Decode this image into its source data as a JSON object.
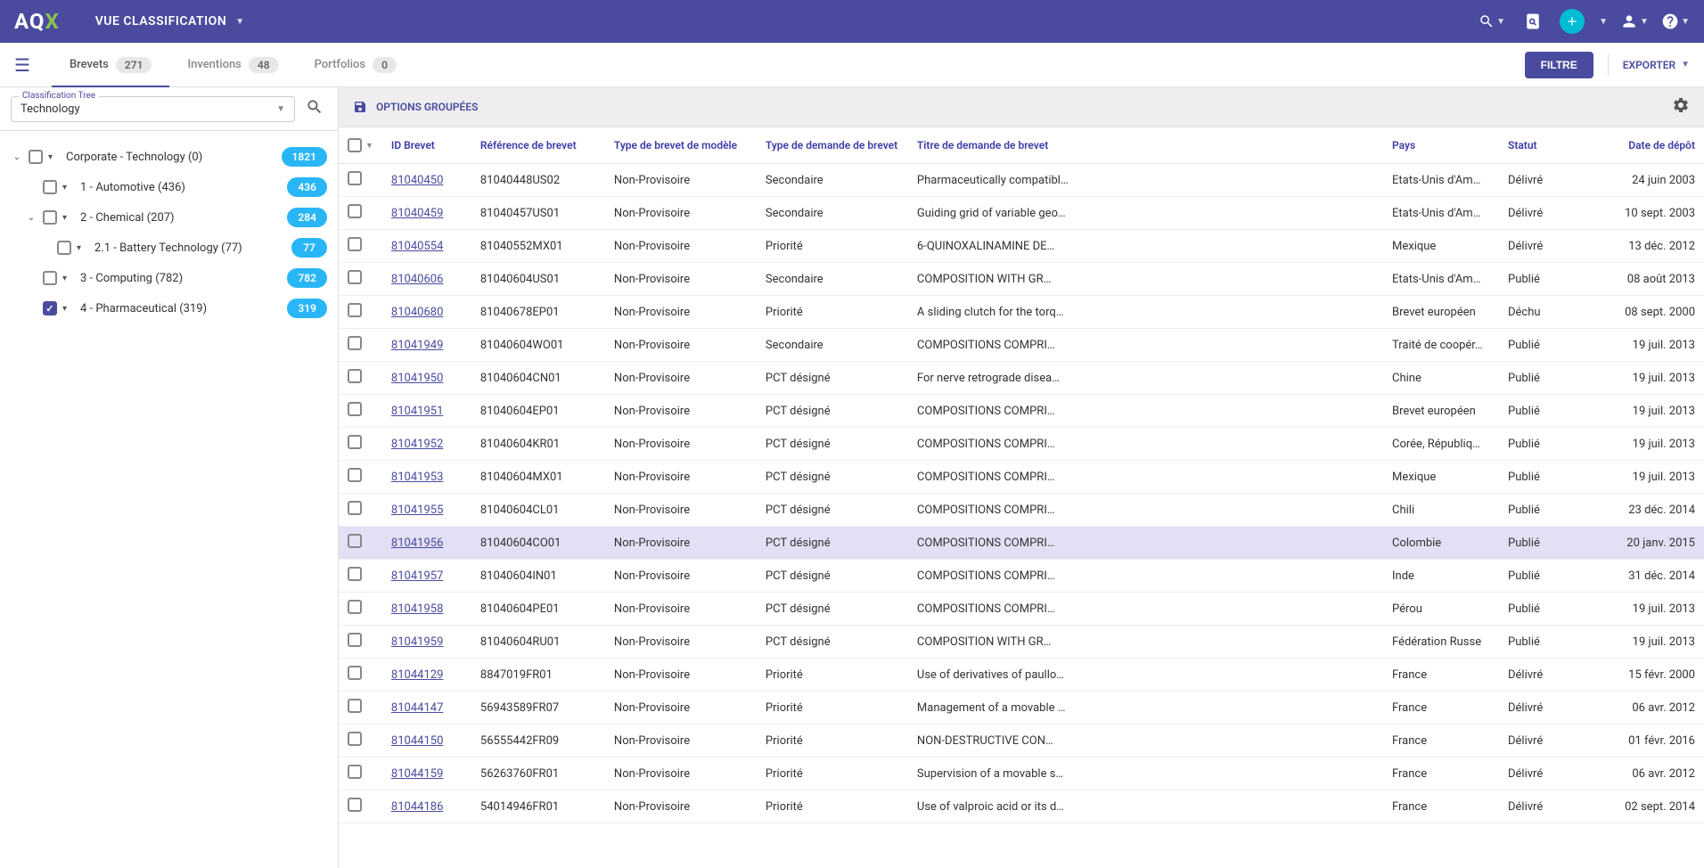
{
  "topbar": {
    "logo_a": "A",
    "logo_q": "Q",
    "logo_x": "X",
    "view_label": "VUE CLASSIFICATION"
  },
  "tabs": {
    "brevets": {
      "label": "Brevets",
      "count": "271"
    },
    "inventions": {
      "label": "Inventions",
      "count": "48"
    },
    "portfolios": {
      "label": "Portfolios",
      "count": "0"
    },
    "filter_btn": "FILTRE",
    "export_btn": "EXPORTER"
  },
  "tree_select": {
    "label": "Classification Tree",
    "value": "Technology"
  },
  "tree": [
    {
      "label": "Corporate - Technology (0)",
      "count": "1821",
      "indent": 0,
      "expanded": true,
      "checked": false
    },
    {
      "label": "1 - Automotive (436)",
      "count": "436",
      "indent": 1,
      "expanded": false,
      "checked": false
    },
    {
      "label": "2 - Chemical (207)",
      "count": "284",
      "indent": 1,
      "expanded": true,
      "checked": false
    },
    {
      "label": "2.1 - Battery Technology (77)",
      "count": "77",
      "indent": 2,
      "expanded": false,
      "checked": false
    },
    {
      "label": "3 - Computing (782)",
      "count": "782",
      "indent": 1,
      "expanded": false,
      "checked": false
    },
    {
      "label": "4 - Pharmaceutical (319)",
      "count": "319",
      "indent": 1,
      "expanded": false,
      "checked": true
    }
  ],
  "options_bar": {
    "label": "OPTIONS GROUPÉES"
  },
  "columns": {
    "id": "ID Brevet",
    "ref": "Référence de brevet",
    "type": "Type de brevet de modèle",
    "demande": "Type de demande de brevet",
    "titre": "Titre de demande de brevet",
    "pays": "Pays",
    "statut": "Statut",
    "date": "Date de dépôt"
  },
  "rows": [
    {
      "id": "81040450",
      "ref": "81040448US02",
      "type": "Non-Provisoire",
      "demande": "Secondaire",
      "titre": "Pharmaceutically compatibl…",
      "pays": "Etats-Unis d'Am…",
      "statut": "Délivré",
      "date": "24 juin 2003",
      "hl": false
    },
    {
      "id": "81040459",
      "ref": "81040457US01",
      "type": "Non-Provisoire",
      "demande": "Secondaire",
      "titre": "Guiding grid of variable geo…",
      "pays": "Etats-Unis d'Am…",
      "statut": "Délivré",
      "date": "10 sept. 2003",
      "hl": false
    },
    {
      "id": "81040554",
      "ref": "81040552MX01",
      "type": "Non-Provisoire",
      "demande": "Priorité",
      "titre": "6-QUINOXALINAMINE DE…",
      "pays": "Mexique",
      "statut": "Délivré",
      "date": "13 déc. 2012",
      "hl": false
    },
    {
      "id": "81040606",
      "ref": "81040604US01",
      "type": "Non-Provisoire",
      "demande": "Secondaire",
      "titre": "COMPOSITION WITH GR…",
      "pays": "Etats-Unis d'Am…",
      "statut": "Publié",
      "date": "08 août 2013",
      "hl": false
    },
    {
      "id": "81040680",
      "ref": "81040678EP01",
      "type": "Non-Provisoire",
      "demande": "Priorité",
      "titre": "A sliding clutch for the torq…",
      "pays": "Brevet européen",
      "statut": "Déchu",
      "date": "08 sept. 2000",
      "hl": false
    },
    {
      "id": "81041949",
      "ref": "81040604WO01",
      "type": "Non-Provisoire",
      "demande": "Secondaire",
      "titre": "COMPOSITIONS COMPRI…",
      "pays": "Traité de coopér…",
      "statut": "Publié",
      "date": "19 juil. 2013",
      "hl": false
    },
    {
      "id": "81041950",
      "ref": "81040604CN01",
      "type": "Non-Provisoire",
      "demande": "PCT désigné",
      "titre": "For nerve retrograde disea…",
      "pays": "Chine",
      "statut": "Publié",
      "date": "19 juil. 2013",
      "hl": false
    },
    {
      "id": "81041951",
      "ref": "81040604EP01",
      "type": "Non-Provisoire",
      "demande": "PCT désigné",
      "titre": "COMPOSITIONS COMPRI…",
      "pays": "Brevet européen",
      "statut": "Publié",
      "date": "19 juil. 2013",
      "hl": false
    },
    {
      "id": "81041952",
      "ref": "81040604KR01",
      "type": "Non-Provisoire",
      "demande": "PCT désigné",
      "titre": "COMPOSITIONS COMPRI…",
      "pays": "Corée, Républiq…",
      "statut": "Publié",
      "date": "19 juil. 2013",
      "hl": false
    },
    {
      "id": "81041953",
      "ref": "81040604MX01",
      "type": "Non-Provisoire",
      "demande": "PCT désigné",
      "titre": "COMPOSITIONS COMPRI…",
      "pays": "Mexique",
      "statut": "Publié",
      "date": "19 juil. 2013",
      "hl": false
    },
    {
      "id": "81041955",
      "ref": "81040604CL01",
      "type": "Non-Provisoire",
      "demande": "PCT désigné",
      "titre": "COMPOSITIONS COMPRI…",
      "pays": "Chili",
      "statut": "Publié",
      "date": "23 déc. 2014",
      "hl": false
    },
    {
      "id": "81041956",
      "ref": "81040604CO01",
      "type": "Non-Provisoire",
      "demande": "PCT désigné",
      "titre": "COMPOSITIONS COMPRI…",
      "pays": "Colombie",
      "statut": "Publié",
      "date": "20 janv. 2015",
      "hl": true
    },
    {
      "id": "81041957",
      "ref": "81040604IN01",
      "type": "Non-Provisoire",
      "demande": "PCT désigné",
      "titre": "COMPOSITIONS COMPRI…",
      "pays": "Inde",
      "statut": "Publié",
      "date": "31 déc. 2014",
      "hl": false
    },
    {
      "id": "81041958",
      "ref": "81040604PE01",
      "type": "Non-Provisoire",
      "demande": "PCT désigné",
      "titre": "COMPOSITIONS COMPRI…",
      "pays": "Pérou",
      "statut": "Publié",
      "date": "19 juil. 2013",
      "hl": false
    },
    {
      "id": "81041959",
      "ref": "81040604RU01",
      "type": "Non-Provisoire",
      "demande": "PCT désigné",
      "titre": "COMPOSITION WITH GR…",
      "pays": "Fédération Russe",
      "statut": "Publié",
      "date": "19 juil. 2013",
      "hl": false
    },
    {
      "id": "81044129",
      "ref": "8847019FR01",
      "type": "Non-Provisoire",
      "demande": "Priorité",
      "titre": "Use of derivatives of paullo…",
      "pays": "France",
      "statut": "Délivré",
      "date": "15 févr. 2000",
      "hl": false
    },
    {
      "id": "81044147",
      "ref": "56943589FR07",
      "type": "Non-Provisoire",
      "demande": "Priorité",
      "titre": "Management of a movable …",
      "pays": "France",
      "statut": "Délivré",
      "date": "06 avr. 2012",
      "hl": false
    },
    {
      "id": "81044150",
      "ref": "56555442FR09",
      "type": "Non-Provisoire",
      "demande": "Priorité",
      "titre": "NON-DESTRUCTIVE CON…",
      "pays": "France",
      "statut": "Délivré",
      "date": "01 févr. 2016",
      "hl": false
    },
    {
      "id": "81044159",
      "ref": "56263760FR01",
      "type": "Non-Provisoire",
      "demande": "Priorité",
      "titre": "Supervision of a movable s…",
      "pays": "France",
      "statut": "Délivré",
      "date": "06 avr. 2012",
      "hl": false
    },
    {
      "id": "81044186",
      "ref": "54014946FR01",
      "type": "Non-Provisoire",
      "demande": "Priorité",
      "titre": "Use of valproic acid or its d…",
      "pays": "France",
      "statut": "Délivré",
      "date": "02 sept. 2014",
      "hl": false
    }
  ]
}
